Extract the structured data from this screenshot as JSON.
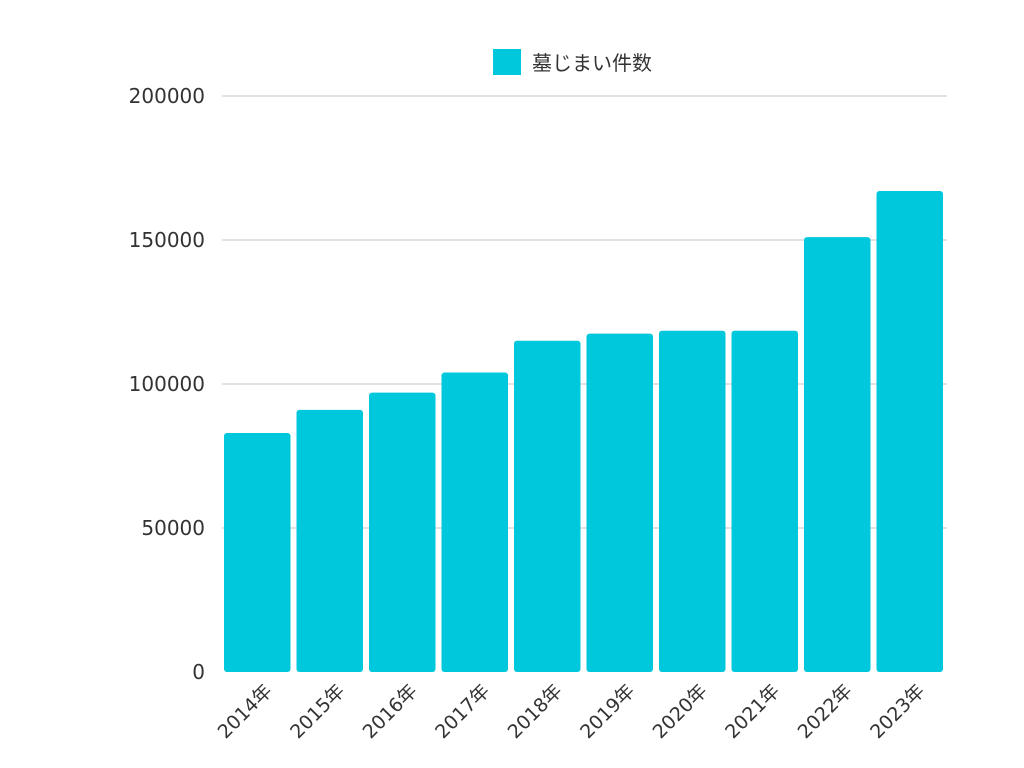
{
  "chart_data": {
    "type": "bar",
    "title": "",
    "xlabel": "",
    "ylabel": "",
    "categories": [
      "2014年",
      "2015年",
      "2016年",
      "2017年",
      "2018年",
      "2019年",
      "2020年",
      "2021年",
      "2022年",
      "2023年"
    ],
    "series": [
      {
        "name": "墓じまい件数",
        "color": "#00c8dc",
        "values": [
          83000,
          91000,
          97000,
          104000,
          115000,
          117500,
          118500,
          118500,
          151000,
          167000
        ]
      }
    ],
    "ylim": [
      0,
      200000
    ],
    "yticks": [
      "0",
      "50000",
      "100000",
      "150000",
      "200000"
    ],
    "grid": true,
    "legend_position": "top-center"
  }
}
